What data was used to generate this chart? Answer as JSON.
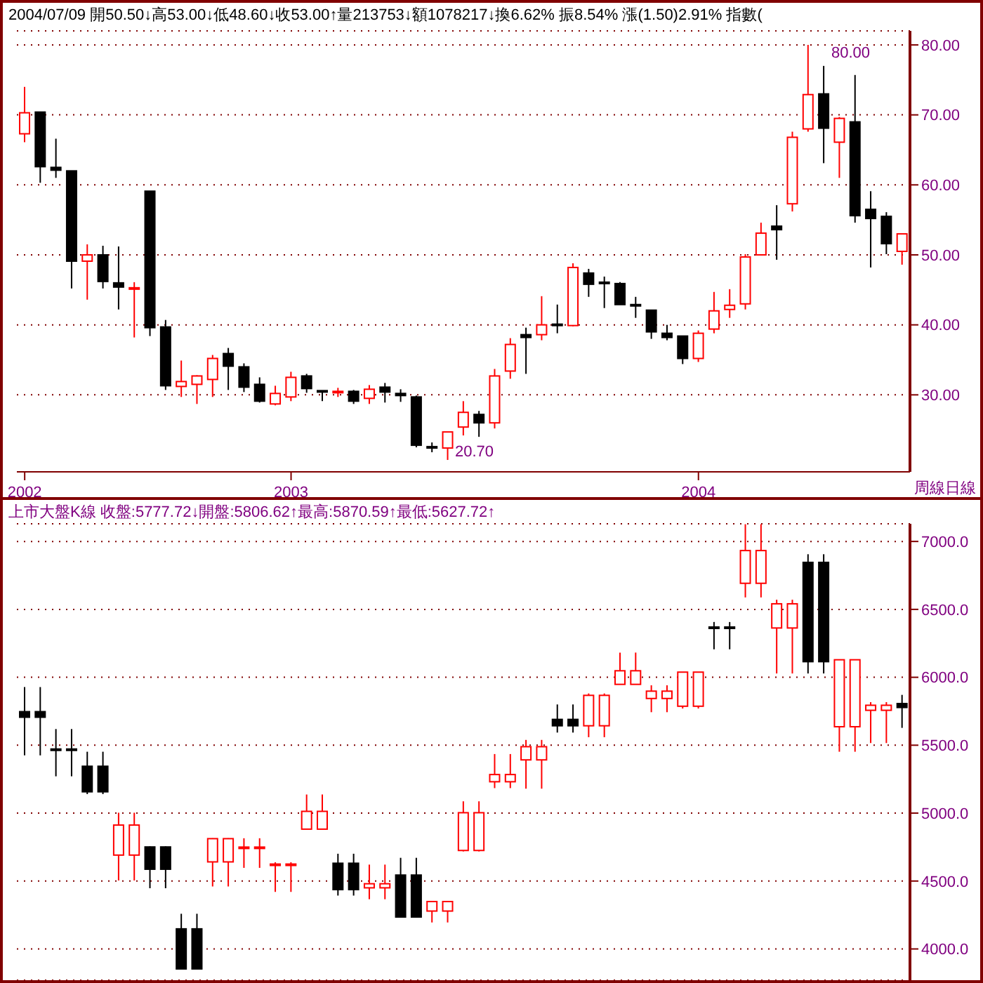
{
  "chart_data": [
    {
      "type": "candlestick",
      "title": "2004/07/09 開50.50↓高53.00↓低48.60↓收53.00↑量213753↓額1078217↓換6.62% 振8.54% 漲(1.50)2.91% 指數(",
      "categories": [
        "2002",
        null,
        null,
        null,
        null,
        null,
        null,
        null,
        null,
        null,
        null,
        null,
        null,
        null,
        null,
        null,
        null,
        "2003",
        null,
        null,
        null,
        null,
        null,
        null,
        null,
        null,
        null,
        null,
        null,
        null,
        null,
        null,
        null,
        null,
        null,
        null,
        null,
        null,
        null,
        null,
        null,
        null,
        null,
        "2004",
        null,
        null,
        null,
        null,
        null,
        null,
        null,
        null,
        null,
        null,
        null,
        null,
        null
      ],
      "ohlc": [
        [
          67.3,
          74.0,
          66.1,
          70.3
        ],
        [
          70.4,
          70.4,
          60.3,
          62.6
        ],
        [
          62.5,
          66.6,
          61.0,
          62.1
        ],
        [
          62.0,
          62.0,
          45.2,
          49.1
        ],
        [
          49.1,
          51.5,
          43.6,
          50.0
        ],
        [
          50.0,
          51.3,
          45.2,
          46.2
        ],
        [
          46.0,
          51.2,
          42.2,
          45.4
        ],
        [
          45.2,
          46.1,
          38.2,
          45.3
        ],
        [
          59.1,
          59.1,
          38.4,
          39.6
        ],
        [
          39.7,
          40.7,
          30.7,
          31.3
        ],
        [
          31.2,
          34.9,
          29.7,
          31.9
        ],
        [
          31.5,
          32.8,
          28.7,
          32.7
        ],
        [
          32.2,
          35.7,
          29.7,
          35.2
        ],
        [
          35.9,
          36.7,
          30.7,
          34.1
        ],
        [
          34.0,
          34.5,
          30.4,
          31.1
        ],
        [
          31.5,
          32.5,
          28.9,
          29.1
        ],
        [
          28.7,
          31.3,
          28.5,
          30.2
        ],
        [
          29.7,
          33.3,
          29.1,
          32.5
        ],
        [
          32.7,
          33.0,
          30.3,
          30.9
        ],
        [
          30.6,
          30.6,
          29.1,
          30.5
        ],
        [
          30.3,
          31.0,
          29.7,
          30.5
        ],
        [
          30.5,
          30.7,
          28.7,
          29.1
        ],
        [
          29.5,
          31.4,
          28.7,
          30.8
        ],
        [
          31.1,
          31.7,
          28.9,
          30.4
        ],
        [
          30.2,
          30.8,
          29.0,
          29.9
        ],
        [
          29.7,
          29.9,
          22.5,
          22.8
        ],
        [
          22.6,
          23.2,
          21.8,
          22.5
        ],
        [
          22.4,
          24.7,
          20.7,
          24.7
        ],
        [
          25.4,
          29.1,
          24.2,
          27.5
        ],
        [
          27.2,
          27.7,
          24.0,
          26.0
        ],
        [
          26.0,
          33.7,
          25.2,
          32.7
        ],
        [
          33.4,
          38.1,
          32.3,
          37.2
        ],
        [
          38.6,
          39.6,
          33.0,
          38.2
        ],
        [
          38.6,
          44.1,
          37.8,
          40.0
        ],
        [
          40.1,
          42.9,
          38.8,
          40.0
        ],
        [
          39.9,
          48.8,
          39.8,
          48.2
        ],
        [
          47.4,
          48.0,
          44.0,
          45.8
        ],
        [
          46.1,
          46.9,
          42.4,
          46.0
        ],
        [
          45.9,
          46.1,
          42.9,
          42.9
        ],
        [
          42.9,
          44.0,
          41.0,
          42.8
        ],
        [
          42.1,
          42.1,
          38.0,
          39.0
        ],
        [
          38.8,
          40.0,
          37.8,
          38.2
        ],
        [
          38.4,
          38.4,
          34.4,
          35.2
        ],
        [
          35.2,
          39.2,
          34.7,
          38.8
        ],
        [
          39.4,
          44.7,
          38.8,
          42.0
        ],
        [
          42.2,
          45.1,
          41.0,
          42.8
        ],
        [
          43.0,
          50.1,
          42.2,
          49.7
        ],
        [
          50.0,
          54.6,
          50.0,
          53.1
        ],
        [
          54.1,
          57.1,
          49.3,
          53.6
        ],
        [
          57.3,
          67.6,
          56.2,
          66.8
        ],
        [
          68.0,
          80.0,
          67.6,
          72.9
        ],
        [
          73.0,
          77.0,
          63.1,
          68.1
        ],
        [
          66.1,
          69.7,
          61.0,
          69.5
        ],
        [
          69.0,
          75.7,
          54.6,
          55.6
        ],
        [
          56.5,
          59.1,
          48.2,
          55.2
        ],
        [
          55.5,
          56.1,
          50.1,
          51.6
        ],
        [
          50.5,
          53.0,
          48.6,
          53.0
        ]
      ],
      "ylim": [
        19,
        82
      ],
      "yticks": [
        {
          "value": 30,
          "label": "30.00"
        },
        {
          "value": 40,
          "label": "40.00"
        },
        {
          "value": 50,
          "label": "50.00"
        },
        {
          "value": 60,
          "label": "60.00"
        },
        {
          "value": 70,
          "label": "70.00"
        },
        {
          "value": 80,
          "label": "80.00"
        }
      ],
      "grid": "y",
      "annotations": [
        "80.00",
        "20.70",
        "周線日線"
      ]
    },
    {
      "type": "candlestick",
      "title": "上市大盤K線 收盤:5777.72↓開盤:5806.62↑最高:5870.59↑最低:5627.72↑",
      "categories": [
        null,
        null,
        null,
        null,
        null,
        null,
        null,
        null,
        null,
        null,
        null,
        null,
        null,
        null,
        null,
        null,
        null,
        null,
        null,
        null,
        null,
        null,
        null,
        null,
        null,
        null,
        null,
        null,
        null,
        null,
        null,
        null,
        null,
        null,
        null,
        null,
        null,
        null,
        null,
        null,
        null,
        null,
        null,
        null,
        null,
        null,
        null,
        null,
        null,
        null,
        null,
        null,
        null,
        null,
        null,
        null,
        null
      ],
      "ohlc": [
        [
          5747,
          5928,
          5425,
          5706
        ],
        [
          5747,
          5928,
          5425,
          5706
        ],
        [
          5472,
          5619,
          5271,
          5462
        ],
        [
          5472,
          5619,
          5271,
          5462
        ],
        [
          5345,
          5452,
          5140,
          5157
        ],
        [
          5345,
          5452,
          5140,
          5157
        ],
        [
          4691,
          5003,
          4504,
          4912
        ],
        [
          4691,
          5003,
          4504,
          4912
        ],
        [
          4751,
          4755,
          4447,
          4587
        ],
        [
          4751,
          4755,
          4447,
          4587
        ],
        [
          4148,
          4259,
          3853,
          3853
        ],
        [
          4148,
          4259,
          3853,
          3853
        ],
        [
          4641,
          4815,
          4460,
          4812
        ],
        [
          4641,
          4815,
          4460,
          4812
        ],
        [
          4745,
          4815,
          4597,
          4750
        ],
        [
          4745,
          4815,
          4597,
          4750
        ],
        [
          4621,
          4638,
          4420,
          4625
        ],
        [
          4621,
          4638,
          4420,
          4625
        ],
        [
          4882,
          5137,
          4882,
          5013
        ],
        [
          4882,
          5137,
          4882,
          5013
        ],
        [
          4631,
          4701,
          4393,
          4437
        ],
        [
          4631,
          4701,
          4393,
          4437
        ],
        [
          4450,
          4621,
          4366,
          4480
        ],
        [
          4450,
          4621,
          4366,
          4480
        ],
        [
          4544,
          4671,
          4235,
          4235
        ],
        [
          4544,
          4671,
          4235,
          4235
        ],
        [
          4279,
          4353,
          4195,
          4349
        ],
        [
          4279,
          4353,
          4195,
          4349
        ],
        [
          4725,
          5087,
          4718,
          5003
        ],
        [
          4725,
          5087,
          4718,
          5003
        ],
        [
          5231,
          5435,
          5184,
          5284
        ],
        [
          5231,
          5435,
          5184,
          5284
        ],
        [
          5392,
          5539,
          5180,
          5489
        ],
        [
          5392,
          5539,
          5180,
          5489
        ],
        [
          5690,
          5800,
          5593,
          5643
        ],
        [
          5690,
          5800,
          5593,
          5643
        ],
        [
          5643,
          5881,
          5559,
          5867
        ],
        [
          5643,
          5881,
          5559,
          5867
        ],
        [
          5948,
          6182,
          5948,
          6048
        ],
        [
          5948,
          6182,
          5948,
          6048
        ],
        [
          5844,
          5941,
          5743,
          5898
        ],
        [
          5844,
          5941,
          5743,
          5898
        ],
        [
          5787,
          6038,
          5770,
          6038
        ],
        [
          5787,
          6038,
          5770,
          6038
        ],
        [
          6370,
          6407,
          6206,
          6360
        ],
        [
          6370,
          6407,
          6206,
          6360
        ],
        [
          6692,
          7127,
          6588,
          6933
        ],
        [
          6692,
          7127,
          6588,
          6933
        ],
        [
          6363,
          6571,
          6028,
          6541
        ],
        [
          6363,
          6571,
          6028,
          6541
        ],
        [
          6846,
          6906,
          6028,
          6115
        ],
        [
          6846,
          6906,
          6028,
          6115
        ],
        [
          5636,
          6129,
          5452,
          6129
        ],
        [
          5636,
          6129,
          5452,
          6129
        ],
        [
          5757,
          5817,
          5516,
          5794
        ],
        [
          5757,
          5817,
          5516,
          5794
        ],
        [
          5806.62,
          5870.59,
          5627.72,
          5777.72
        ]
      ],
      "ylim": [
        3770,
        7130
      ],
      "yticks": [
        {
          "value": 4000,
          "label": "4000.0"
        },
        {
          "value": 4500,
          "label": "4500.0"
        },
        {
          "value": 5000,
          "label": "5000.0"
        },
        {
          "value": 5500,
          "label": "5500.0"
        },
        {
          "value": 6000,
          "label": "6000.0"
        },
        {
          "value": 6500,
          "label": "6500.0"
        },
        {
          "value": 7000,
          "label": "7000.0"
        }
      ],
      "grid": "y",
      "tick_labels": "y"
    }
  ]
}
